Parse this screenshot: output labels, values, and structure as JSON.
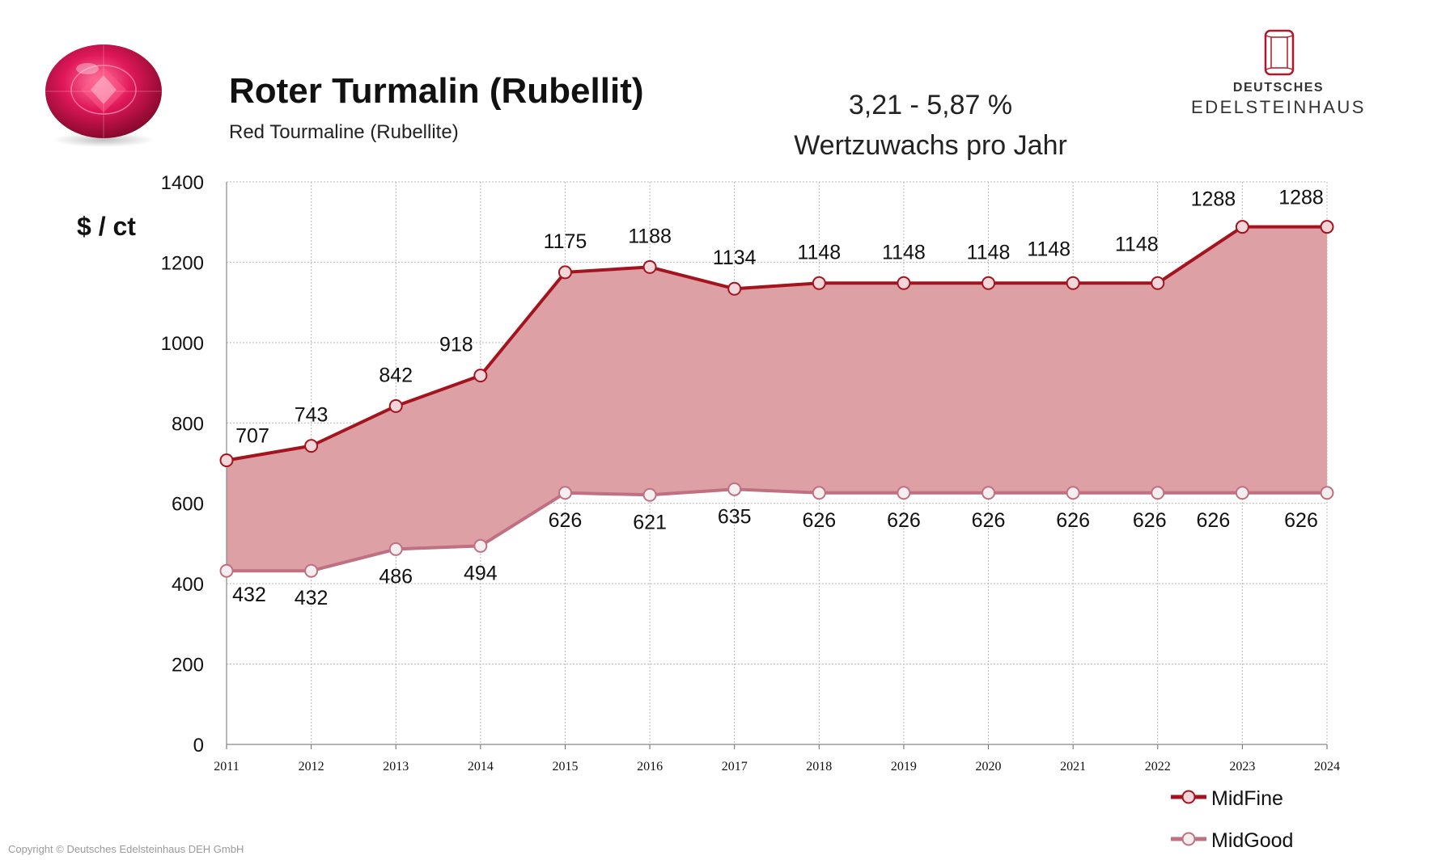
{
  "header": {
    "title": "Roter Turmalin (Rubellit)",
    "subtitle": "Red Tourmaline (Rubellite)",
    "growth_line1": "3,21 - 5,87 %",
    "growth_line2": "Wertzuwachs pro Jahr"
  },
  "logo": {
    "line1": "DEUTSCHES",
    "line2": "EDELSTEINHAUS"
  },
  "footer": {
    "copyright": "Copyright © Deutsches Edelsteinhaus DEH GmbH"
  },
  "colors": {
    "midfine": "#a3141f",
    "midgood": "#c07080",
    "band": "#dca0a5"
  },
  "chart_data": {
    "type": "area",
    "title": "Roter Turmalin (Rubellit)",
    "ylabel": "$ / ct",
    "xlabel": "",
    "ylim": [
      0,
      1400
    ],
    "yticks": [
      0,
      200,
      400,
      600,
      800,
      1000,
      1200,
      1400
    ],
    "grid": true,
    "legend": "bottom-right",
    "x": [
      "2011",
      "2012",
      "2013",
      "2014",
      "2015",
      "2016",
      "2017",
      "2018",
      "2019",
      "2020",
      "2021",
      "2022",
      "2023",
      "2024"
    ],
    "series": [
      {
        "name": "MidFine",
        "values": [
          707,
          743,
          842,
          918,
          1175,
          1188,
          1134,
          1148,
          1148,
          1148,
          1148,
          1148,
          1288,
          1288
        ]
      },
      {
        "name": "MidGood",
        "values": [
          432,
          432,
          486,
          494,
          626,
          621,
          635,
          626,
          626,
          626,
          626,
          626,
          626,
          626
        ]
      }
    ]
  }
}
